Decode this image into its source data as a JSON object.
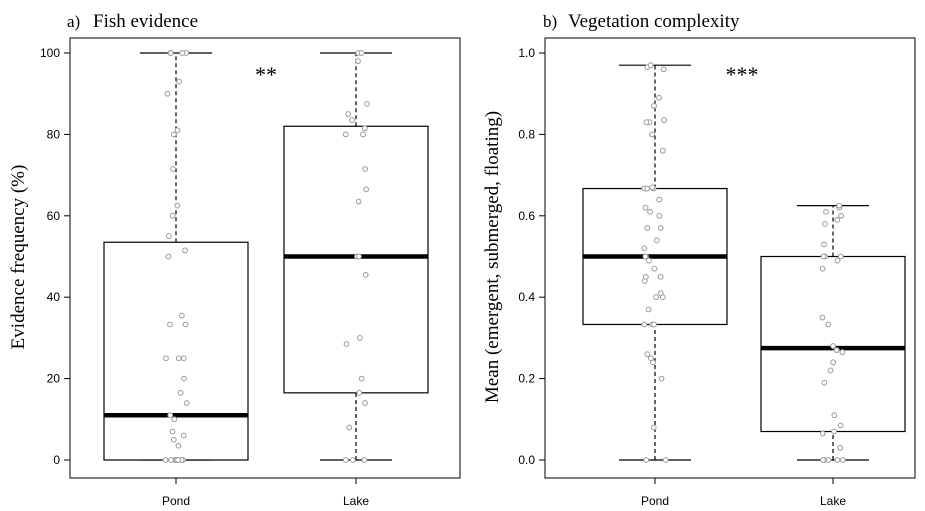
{
  "figure": {
    "x_categories": [
      "Pond",
      "Lake"
    ],
    "colors": {
      "axis": "#000000",
      "box_fill": "#ffffff",
      "median": "#000000",
      "point_stroke": "#9a9a9a"
    }
  },
  "chart_data": [
    {
      "type": "box",
      "panel_label": "a)",
      "title": "Fish evidence",
      "xlabel": "",
      "ylabel": "Evidence frequency (%)",
      "ylim": [
        0,
        100
      ],
      "yticks": [
        0,
        20,
        40,
        60,
        80,
        100
      ],
      "ytick_labels": [
        "0",
        "20",
        "40",
        "60",
        "80",
        "100"
      ],
      "categories": [
        "Pond",
        "Lake"
      ],
      "significance": "**",
      "boxes": [
        {
          "name": "Pond",
          "min": 0,
          "q1": 0,
          "median": 11,
          "q3": 53.5,
          "max": 100
        },
        {
          "name": "Lake",
          "min": 0,
          "q1": 16.5,
          "median": 50,
          "q3": 82,
          "max": 100
        }
      ],
      "points": [
        [
          0,
          0,
          0,
          0,
          0,
          0,
          0,
          0,
          0,
          0,
          0,
          3.5,
          5,
          6,
          7,
          10,
          11,
          14,
          16.5,
          20,
          25,
          25,
          25,
          33.3,
          33.3,
          35.5,
          50,
          51.5,
          55,
          60,
          62.5,
          71.5,
          80,
          81,
          90,
          93,
          100,
          100,
          100,
          100
        ],
        [
          0,
          0,
          0,
          8,
          14,
          16.5,
          20,
          28.5,
          30,
          45.5,
          50,
          50,
          50,
          63.5,
          66.5,
          71.5,
          80,
          80,
          81.5,
          83.5,
          85,
          87.5,
          98,
          100,
          100,
          100
        ]
      ]
    },
    {
      "type": "box",
      "panel_label": "b)",
      "title": "Vegetation complexity",
      "xlabel": "",
      "ylabel": "Mean (emergent, submerged, floating)",
      "ylim": [
        0,
        1
      ],
      "yticks": [
        0,
        0.2,
        0.4,
        0.6,
        0.8,
        1.0
      ],
      "ytick_labels": [
        "0.0",
        "0.2",
        "0.4",
        "0.6",
        "0.8",
        "1.0"
      ],
      "categories": [
        "Pond",
        "Lake"
      ],
      "significance": "***",
      "boxes": [
        {
          "name": "Pond",
          "min": 0,
          "q1": 0.333,
          "median": 0.5,
          "q3": 0.667,
          "max": 0.97
        },
        {
          "name": "Lake",
          "min": 0,
          "q1": 0.07,
          "median": 0.275,
          "q3": 0.5,
          "max": 0.625
        }
      ],
      "points": [
        [
          0,
          0,
          0.08,
          0.2,
          0.24,
          0.25,
          0.26,
          0.333,
          0.333,
          0.333,
          0.37,
          0.4,
          0.4,
          0.41,
          0.44,
          0.45,
          0.45,
          0.47,
          0.49,
          0.5,
          0.5,
          0.52,
          0.54,
          0.57,
          0.57,
          0.6,
          0.61,
          0.62,
          0.64,
          0.667,
          0.667,
          0.667,
          0.67,
          0.76,
          0.8,
          0.83,
          0.83,
          0.835,
          0.87,
          0.89,
          0.96,
          0.965,
          0.97
        ],
        [
          0,
          0,
          0,
          0,
          0,
          0.03,
          0.065,
          0.07,
          0.085,
          0.11,
          0.19,
          0.22,
          0.24,
          0.265,
          0.27,
          0.28,
          0.333,
          0.35,
          0.47,
          0.49,
          0.5,
          0.5,
          0.5,
          0.53,
          0.58,
          0.59,
          0.6,
          0.61,
          0.62,
          0.625
        ]
      ]
    }
  ]
}
